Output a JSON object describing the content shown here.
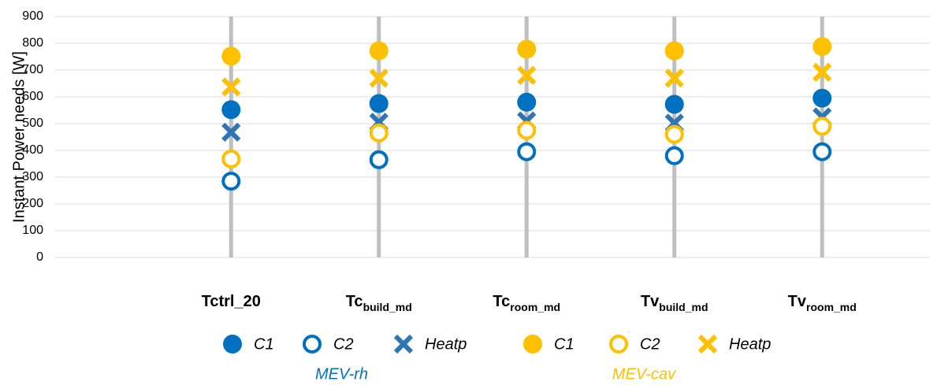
{
  "chart_data": {
    "type": "scatter",
    "y_label": "Instant Power needs [W]",
    "categories": [
      "Tctrl_20",
      "Tc",
      "Tc",
      "Tv",
      "Tv"
    ],
    "category_subscripts": [
      null,
      "build_md",
      "room_md",
      "build_md",
      "room_md"
    ],
    "ylim": [
      0,
      900
    ],
    "yticks": [
      0,
      100,
      200,
      300,
      400,
      500,
      600,
      700,
      800,
      900
    ],
    "grid": true,
    "legend": "bottom",
    "series": [
      {
        "name": "C1",
        "group": "MEV-rh",
        "marker": "circle",
        "color": "#0070c0",
        "values": [
          552,
          575,
          580,
          572,
          595
        ]
      },
      {
        "name": "C2",
        "group": "MEV-rh",
        "marker": "open-circle",
        "color": "#0070c0",
        "values": [
          285,
          365,
          395,
          380,
          395
        ]
      },
      {
        "name": "Heatp",
        "group": "MEV-rh",
        "marker": "x",
        "color": "#2e75b6",
        "values": [
          468,
          505,
          510,
          502,
          525
        ]
      },
      {
        "name": "C1",
        "group": "MEV-cav",
        "marker": "circle",
        "color": "#ffc000",
        "values": [
          752,
          772,
          778,
          772,
          788
        ]
      },
      {
        "name": "C2",
        "group": "MEV-cav",
        "marker": "open-circle",
        "color": "#ffc000",
        "values": [
          368,
          465,
          475,
          460,
          490
        ]
      },
      {
        "name": "Heatp",
        "group": "MEV-cav",
        "marker": "x",
        "color": "#ffc000",
        "values": [
          637,
          670,
          680,
          670,
          692
        ]
      }
    ]
  }
}
